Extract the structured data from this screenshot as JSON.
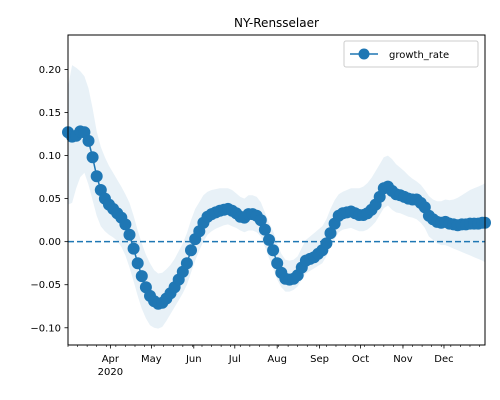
{
  "chart_data": {
    "type": "line",
    "title": "NY-Rensselaer",
    "xlabel": "",
    "ylabel": "",
    "x_axis": {
      "start": "2020-03-01",
      "end": "2020-12-31",
      "month_labels": [
        "Apr",
        "May",
        "Jun",
        "Jul",
        "Aug",
        "Sep",
        "Oct",
        "Nov",
        "Dec"
      ],
      "month_dates": [
        "2020-04-01",
        "2020-05-01",
        "2020-06-01",
        "2020-07-01",
        "2020-08-01",
        "2020-09-01",
        "2020-10-01",
        "2020-11-01",
        "2020-12-01"
      ],
      "year_label": "2020"
    },
    "y_axis": {
      "ylim": [
        -0.12,
        0.24
      ],
      "ticks": [
        -0.1,
        -0.05,
        0.0,
        0.05,
        0.1,
        0.15,
        0.2
      ],
      "tick_labels": [
        "−0.10",
        "−0.05",
        "0.00",
        "0.05",
        "0.10",
        "0.15",
        "0.20"
      ]
    },
    "legend": {
      "position": "top-right",
      "entries": [
        "growth_rate"
      ]
    },
    "reference_line": {
      "y": 0.0,
      "style": "dashed"
    },
    "colors": {
      "series": "#1f77b4",
      "band": "#1f77b4"
    },
    "series": [
      {
        "name": "growth_rate",
        "x": [
          "2020-03-01",
          "2020-03-04",
          "2020-03-07",
          "2020-03-10",
          "2020-03-13",
          "2020-03-16",
          "2020-03-19",
          "2020-03-22",
          "2020-03-25",
          "2020-03-28",
          "2020-03-31",
          "2020-04-03",
          "2020-04-06",
          "2020-04-09",
          "2020-04-12",
          "2020-04-15",
          "2020-04-18",
          "2020-04-21",
          "2020-04-24",
          "2020-04-27",
          "2020-04-30",
          "2020-05-03",
          "2020-05-06",
          "2020-05-09",
          "2020-05-12",
          "2020-05-15",
          "2020-05-18",
          "2020-05-21",
          "2020-05-24",
          "2020-05-27",
          "2020-05-30",
          "2020-06-02",
          "2020-06-05",
          "2020-06-08",
          "2020-06-11",
          "2020-06-14",
          "2020-06-17",
          "2020-06-20",
          "2020-06-23",
          "2020-06-26",
          "2020-06-29",
          "2020-07-02",
          "2020-07-05",
          "2020-07-08",
          "2020-07-11",
          "2020-07-14",
          "2020-07-17",
          "2020-07-20",
          "2020-07-23",
          "2020-07-26",
          "2020-07-29",
          "2020-08-01",
          "2020-08-04",
          "2020-08-07",
          "2020-08-10",
          "2020-08-13",
          "2020-08-16",
          "2020-08-19",
          "2020-08-22",
          "2020-08-25",
          "2020-08-28",
          "2020-08-31",
          "2020-09-03",
          "2020-09-06",
          "2020-09-09",
          "2020-09-12",
          "2020-09-15",
          "2020-09-18",
          "2020-09-21",
          "2020-09-24",
          "2020-09-27",
          "2020-09-30",
          "2020-10-03",
          "2020-10-06",
          "2020-10-09",
          "2020-10-12",
          "2020-10-15",
          "2020-10-18",
          "2020-10-21",
          "2020-10-24",
          "2020-10-27",
          "2020-10-30",
          "2020-11-02",
          "2020-11-05",
          "2020-11-08",
          "2020-11-11",
          "2020-11-14",
          "2020-11-17",
          "2020-11-20",
          "2020-11-23",
          "2020-11-26",
          "2020-11-29",
          "2020-12-02",
          "2020-12-05",
          "2020-12-08",
          "2020-12-11",
          "2020-12-14",
          "2020-12-17",
          "2020-12-20",
          "2020-12-23",
          "2020-12-26",
          "2020-12-29",
          "2020-12-31"
        ],
        "values": [
          0.127,
          0.122,
          0.123,
          0.128,
          0.127,
          0.117,
          0.098,
          0.076,
          0.06,
          0.05,
          0.043,
          0.038,
          0.033,
          0.028,
          0.02,
          0.008,
          -0.008,
          -0.025,
          -0.04,
          -0.053,
          -0.063,
          -0.069,
          -0.072,
          -0.071,
          -0.066,
          -0.06,
          -0.053,
          -0.044,
          -0.035,
          -0.025,
          -0.01,
          0.003,
          0.012,
          0.022,
          0.029,
          0.032,
          0.034,
          0.036,
          0.037,
          0.038,
          0.036,
          0.033,
          0.029,
          0.028,
          0.032,
          0.032,
          0.03,
          0.025,
          0.014,
          0.002,
          -0.01,
          -0.025,
          -0.036,
          -0.043,
          -0.044,
          -0.043,
          -0.039,
          -0.03,
          -0.022,
          -0.02,
          -0.018,
          -0.014,
          -0.01,
          -0.002,
          0.01,
          0.021,
          0.03,
          0.033,
          0.034,
          0.035,
          0.033,
          0.031,
          0.031,
          0.033,
          0.037,
          0.043,
          0.052,
          0.062,
          0.064,
          0.059,
          0.055,
          0.054,
          0.052,
          0.05,
          0.049,
          0.049,
          0.045,
          0.04,
          0.03,
          0.026,
          0.023,
          0.022,
          0.023,
          0.021,
          0.02,
          0.019,
          0.02,
          0.02,
          0.021,
          0.021,
          0.021,
          0.022,
          0.022
        ],
        "lower": [
          0.043,
          0.045,
          0.062,
          0.075,
          0.08,
          0.066,
          0.048,
          0.03,
          0.018,
          0.012,
          0.008,
          0.005,
          0.001,
          -0.006,
          -0.016,
          -0.03,
          -0.046,
          -0.063,
          -0.078,
          -0.089,
          -0.097,
          -0.1,
          -0.101,
          -0.099,
          -0.092,
          -0.084,
          -0.076,
          -0.068,
          -0.06,
          -0.05,
          -0.036,
          -0.022,
          -0.01,
          0.0,
          0.008,
          0.012,
          0.015,
          0.017,
          0.019,
          0.02,
          0.018,
          0.016,
          0.013,
          0.011,
          0.013,
          0.013,
          0.011,
          0.006,
          -0.006,
          -0.019,
          -0.031,
          -0.044,
          -0.053,
          -0.058,
          -0.058,
          -0.056,
          -0.052,
          -0.044,
          -0.037,
          -0.034,
          -0.031,
          -0.028,
          -0.025,
          -0.017,
          -0.006,
          0.003,
          0.011,
          0.014,
          0.015,
          0.016,
          0.014,
          0.012,
          0.012,
          0.014,
          0.018,
          0.023,
          0.031,
          0.039,
          0.042,
          0.037,
          0.034,
          0.033,
          0.031,
          0.029,
          0.028,
          0.026,
          0.022,
          0.016,
          0.006,
          0.002,
          -0.002,
          -0.004,
          -0.004,
          -0.006,
          -0.008,
          -0.01,
          -0.012,
          -0.014,
          -0.016,
          -0.018,
          -0.02,
          -0.022,
          -0.024
        ],
        "upper": [
          0.18,
          0.205,
          0.202,
          0.198,
          0.192,
          0.178,
          0.155,
          0.128,
          0.11,
          0.098,
          0.088,
          0.08,
          0.072,
          0.064,
          0.055,
          0.045,
          0.03,
          0.013,
          -0.002,
          -0.015,
          -0.025,
          -0.033,
          -0.037,
          -0.036,
          -0.032,
          -0.027,
          -0.02,
          -0.011,
          -0.002,
          0.01,
          0.025,
          0.038,
          0.046,
          0.054,
          0.058,
          0.06,
          0.061,
          0.062,
          0.062,
          0.062,
          0.06,
          0.056,
          0.052,
          0.05,
          0.054,
          0.054,
          0.052,
          0.046,
          0.034,
          0.022,
          0.012,
          -0.002,
          -0.014,
          -0.021,
          -0.022,
          -0.021,
          -0.017,
          -0.007,
          0.002,
          0.006,
          0.01,
          0.014,
          0.018,
          0.026,
          0.038,
          0.048,
          0.055,
          0.058,
          0.06,
          0.062,
          0.062,
          0.062,
          0.064,
          0.068,
          0.074,
          0.082,
          0.09,
          0.098,
          0.1,
          0.096,
          0.09,
          0.086,
          0.082,
          0.077,
          0.073,
          0.07,
          0.066,
          0.06,
          0.053,
          0.049,
          0.047,
          0.047,
          0.049,
          0.048,
          0.049,
          0.051,
          0.054,
          0.057,
          0.06,
          0.062,
          0.064,
          0.066,
          0.068
        ]
      }
    ]
  }
}
